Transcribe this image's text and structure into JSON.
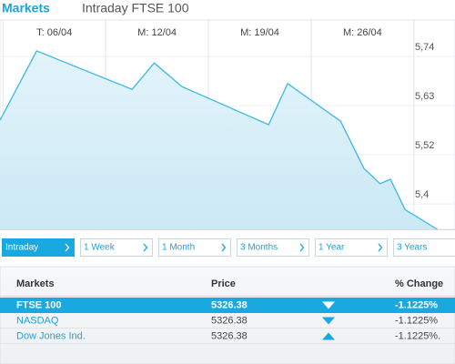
{
  "header": {
    "title": "Markets",
    "subtitle": "Intraday FTSE 100"
  },
  "chart_data": {
    "type": "area",
    "color": "#3bb8e6",
    "grid": true,
    "x": [
      2.3,
      4.8,
      11.3,
      12.8,
      14.7,
      20.6,
      21.9,
      25.5,
      27.1,
      28.2,
      28.9,
      29.9,
      32.1
    ],
    "values": [
      5577,
      5732,
      5646,
      5705,
      5652,
      5567,
      5659,
      5575,
      5469,
      5435,
      5445,
      5377,
      5333
    ],
    "xlim": [
      2.3,
      33.3
    ],
    "ylim": [
      5333,
      5801
    ],
    "xticks": [
      {
        "value": 6,
        "label": "T: 06/04"
      },
      {
        "value": 13,
        "label": "M: 12/04"
      },
      {
        "value": 20,
        "label": "M: 19/04"
      },
      {
        "value": 27,
        "label": "M: 26/04"
      }
    ],
    "yticks": [
      {
        "value": 5740,
        "label": "5,74"
      },
      {
        "value": 5630,
        "label": "5,63"
      },
      {
        "value": 5520,
        "label": "5,52"
      },
      {
        "value": 5410,
        "label": "5,4"
      }
    ]
  },
  "tabs": {
    "items": [
      "Intraday",
      "1 Week",
      "1 Month",
      "3 Months",
      "1 Year",
      "3 Years"
    ],
    "selected": 0
  },
  "table": {
    "columns": [
      "Markets",
      "Price",
      "% Change"
    ],
    "rows": [
      [
        "FTSE 100",
        "5326.38",
        "down",
        "-1.1225%"
      ],
      [
        "NASDAQ",
        "5326.38",
        "down",
        "-1.1225%"
      ],
      [
        "Dow Jones Ind.",
        "5326.38",
        "up",
        "-1.1225%."
      ]
    ],
    "selected": 0
  }
}
